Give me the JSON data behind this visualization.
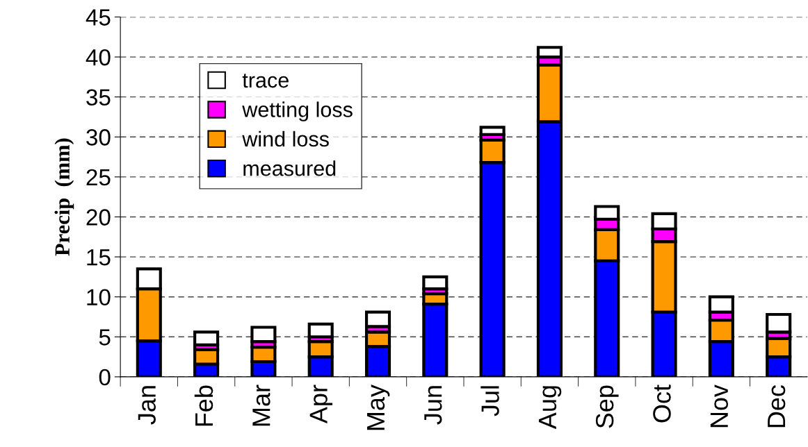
{
  "chart_data": {
    "type": "bar",
    "stacked": true,
    "ylabel": "Precip  (mm)",
    "categories": [
      "Jan",
      "Feb",
      "Mar",
      "Apr",
      "May",
      "Jun",
      "Jul",
      "Aug",
      "Sep",
      "Oct",
      "Nov",
      "Dec"
    ],
    "series": [
      {
        "name": "measured",
        "color": "#0000ff",
        "values": [
          4.5,
          1.6,
          1.9,
          2.5,
          3.8,
          9.1,
          26.8,
          31.9,
          14.5,
          8.1,
          4.4,
          2.5
        ]
      },
      {
        "name": "wind loss",
        "color": "#ff9900",
        "values": [
          6.5,
          1.8,
          1.8,
          1.9,
          1.8,
          1.3,
          2.8,
          7.1,
          3.9,
          8.8,
          2.7,
          2.3
        ]
      },
      {
        "name": "wetting loss",
        "color": "#ff00ff",
        "values": [
          null,
          0.6,
          0.7,
          0.6,
          0.7,
          0.6,
          0.7,
          1.0,
          1.3,
          1.6,
          1.0,
          0.8
        ]
      },
      {
        "name": "trace",
        "color": "#ffffff",
        "values": [
          2.5,
          1.6,
          1.8,
          1.6,
          1.8,
          1.5,
          0.9,
          1.2,
          1.6,
          1.9,
          1.9,
          2.2
        ]
      }
    ],
    "ylim": [
      0,
      45
    ],
    "yticks": [
      0,
      5,
      10,
      15,
      20,
      25,
      30,
      35,
      40,
      45
    ],
    "grid": "y",
    "legend": "top left"
  }
}
